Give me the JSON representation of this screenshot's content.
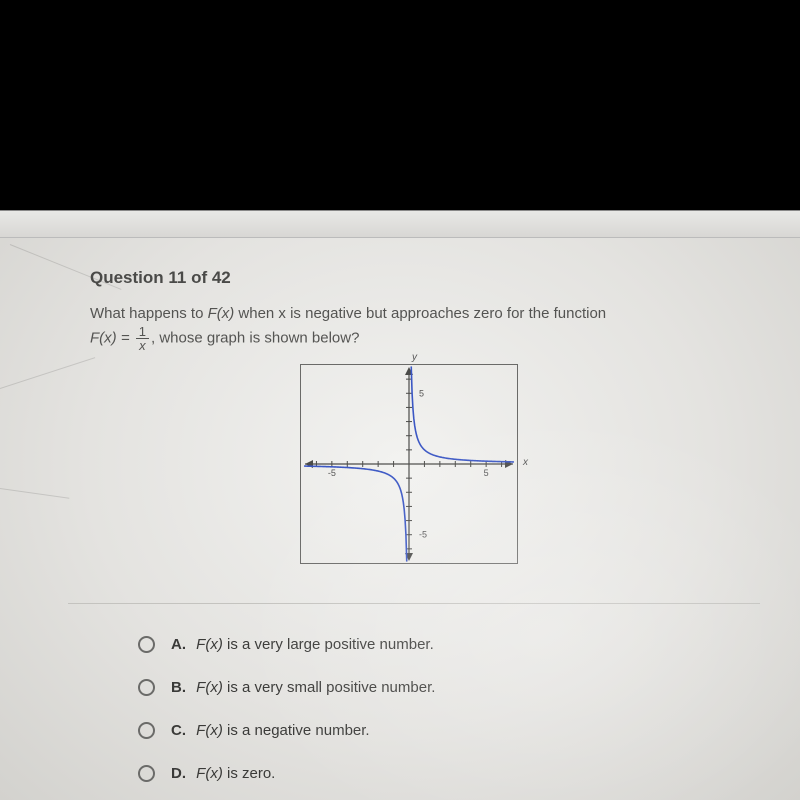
{
  "browser_tab_fragment": "",
  "question": {
    "header": "Question 11 of 42",
    "line1_pre": "What happens to ",
    "line1_fx": "F(x)",
    "line1_post": " when x is negative but approaches zero for the function",
    "line2_pre": "F(x) = ",
    "frac_num": "1",
    "frac_den": "x",
    "line2_post": ", whose graph is shown below?"
  },
  "graph": {
    "xlim": [
      -7,
      7
    ],
    "ylim": [
      -7,
      7
    ],
    "tick_step": 1,
    "label_ticks": {
      "x_neg": "-5",
      "x_pos": "5",
      "y_pos": "5",
      "y_neg": "-5"
    },
    "axis_label_y": "y",
    "axis_label_x": "x",
    "curve_color": "#3b57c4",
    "axis_color": "#4b4b49",
    "tick_color": "#4b4b49",
    "box_border": "#6a6a68",
    "series": "1/x"
  },
  "answers": [
    {
      "letter": "A.",
      "pre": "F(x)",
      "text": " is a very large positive number."
    },
    {
      "letter": "B.",
      "pre": "F(x)",
      "text": " is a very small positive number."
    },
    {
      "letter": "C.",
      "pre": "F(x)",
      "text": " is a negative number."
    },
    {
      "letter": "D.",
      "pre": "F(x)",
      "text": " is zero."
    }
  ],
  "colors": {
    "page_bg": "#ececea",
    "text": "#3c3c3a",
    "divider": "#c4c3bf"
  }
}
